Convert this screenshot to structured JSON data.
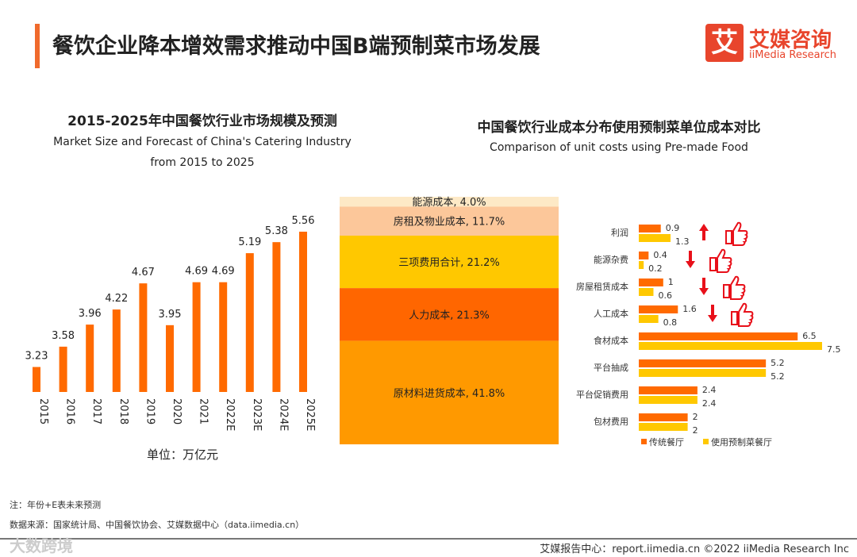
{
  "header": {
    "title": "餐饮企业降本增效需求推动中国B端预制菜市场发展",
    "logo_glyph": "艾",
    "logo_cn": "艾媒咨询",
    "logo_en": "iiMedia Research"
  },
  "colors": {
    "orange": "#ff6a00",
    "yellow": "#ffc800",
    "accent": "#f06a2c",
    "red": "#e8101a"
  },
  "chart_data": [
    {
      "type": "bar",
      "title": "2015-2025年中国餐饮行业市场规模及预测",
      "subtitle_line1": "Market Size and Forecast of China's Catering Industry",
      "subtitle_line2": "from 2015 to 2025",
      "xlabel": "单位：万亿元",
      "ylabel": "",
      "ylim": [
        2.8,
        5.6
      ],
      "categories": [
        "2015",
        "2016",
        "2017",
        "2018",
        "2019",
        "2020",
        "2021",
        "2022E",
        "2023E",
        "2024E",
        "2025E"
      ],
      "values": [
        3.23,
        3.58,
        3.96,
        4.22,
        4.67,
        3.95,
        4.69,
        4.69,
        5.19,
        5.38,
        5.56
      ]
    },
    {
      "type": "bar",
      "subtype": "stacked-100",
      "title": "中国餐饮行业成本分布使用预制菜单位成本对比",
      "subtitle": "Comparison of unit costs using Pre-made Food",
      "segments": [
        {
          "label": "能源成本, 4.0%",
          "value": 4.0,
          "color": "#fde9c6"
        },
        {
          "label": "房租及物业成本, 11.7%",
          "value": 11.7,
          "color": "#fcc79a"
        },
        {
          "label": "三项费用合计, 21.2%",
          "value": 21.2,
          "color": "#ffc800"
        },
        {
          "label": "人力成本, 21.3%",
          "value": 21.3,
          "color": "#ff6600"
        },
        {
          "label": "原材料进货成本, 41.8%",
          "value": 41.8,
          "color": "#ff9900"
        }
      ]
    },
    {
      "type": "bar",
      "orientation": "horizontal",
      "categories": [
        "利润",
        "能源杂费",
        "房屋租赁成本",
        "人工成本",
        "食材成本",
        "平台抽成",
        "平台促销费用",
        "包材费用"
      ],
      "series": [
        {
          "name": "传统餐厅",
          "values": [
            0.9,
            0.4,
            1,
            1.6,
            6.5,
            5.2,
            2.4,
            2
          ],
          "color": "#ff6a00"
        },
        {
          "name": "使用预制菜餐厅",
          "values": [
            1.3,
            0.2,
            0.6,
            0.8,
            7.5,
            5.2,
            2.4,
            2
          ],
          "color": "#ffc800"
        }
      ],
      "annotations": [
        "up",
        "down",
        "down",
        "down"
      ],
      "legend": "bottom"
    }
  ],
  "footer": {
    "note": "注：年份+E表未来预测",
    "source": "数据来源：国家统计局、中国餐饮协会、艾媒数据中心（data.iimedia.cn）",
    "watermark": "大数跨境",
    "credit": "艾媒报告中心：report.iimedia.cn   ©2022  iiMedia Research  Inc"
  }
}
